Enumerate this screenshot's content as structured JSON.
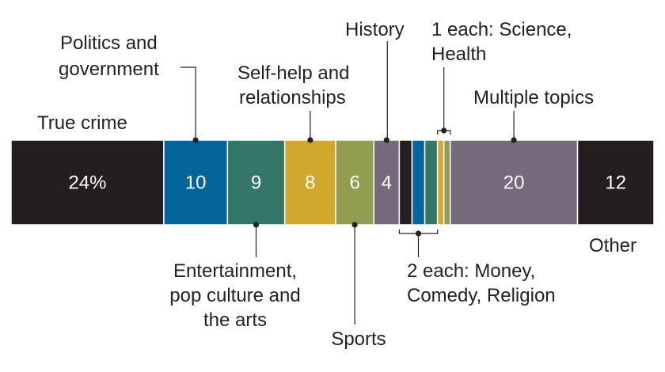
{
  "chart_data": {
    "type": "bar",
    "subtype": "100% stacked single bar",
    "unit": "%",
    "segments": [
      {
        "category": "True crime",
        "value": 24,
        "value_label": "24%",
        "color": "#231f20"
      },
      {
        "category": "Politics and government",
        "value": 10,
        "value_label": "10",
        "color": "#036599"
      },
      {
        "category": "Entertainment, pop culture and the arts",
        "value": 9,
        "value_label": "9",
        "color": "#347667"
      },
      {
        "category": "Self-help and relationships",
        "value": 8,
        "value_label": "8",
        "color": "#d2a72e"
      },
      {
        "category": "Sports",
        "value": 6,
        "value_label": "6",
        "color": "#929d50"
      },
      {
        "category": "History",
        "value": 4,
        "value_label": "4",
        "color": "#766b7d"
      },
      {
        "category": "Money",
        "value": 2,
        "value_label": "",
        "color": "#231f20"
      },
      {
        "category": "Comedy",
        "value": 2,
        "value_label": "",
        "color": "#036599"
      },
      {
        "category": "Religion",
        "value": 2,
        "value_label": "",
        "color": "#347667"
      },
      {
        "category": "Science",
        "value": 1,
        "value_label": "",
        "color": "#d2a72e"
      },
      {
        "category": "Health",
        "value": 1,
        "value_label": "",
        "color": "#929d50"
      },
      {
        "category": "Multiple topics",
        "value": 20,
        "value_label": "20",
        "color": "#766b7d"
      },
      {
        "category": "Other",
        "value": 12,
        "value_label": "12",
        "color": "#231f20"
      }
    ],
    "annotations": {
      "true_crime": "True crime",
      "politics": [
        "Politics and",
        "government"
      ],
      "self_help": [
        "Self-help and",
        "relationships"
      ],
      "history": "History",
      "science_health": [
        "1 each: Science,",
        "Health"
      ],
      "multiple": "Multiple topics",
      "entertainment": [
        "Entertainment,",
        "pop culture and",
        "the arts"
      ],
      "sports": "Sports",
      "money_comedy_religion": [
        "2 each: Money,",
        "Comedy, Religion"
      ],
      "other": "Other"
    },
    "legend": false,
    "grid": false
  }
}
